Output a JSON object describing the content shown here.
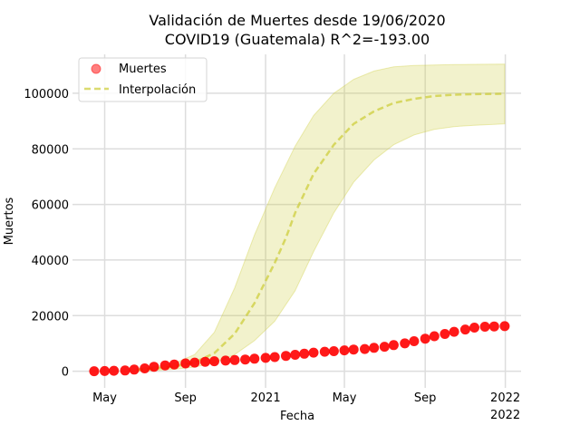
{
  "chart_data": {
    "type": "line",
    "title_lines": [
      "Validación de Muertes desde 19/06/2020",
      "COVID19 (Guatemala) R^2=-193.00"
    ],
    "xlabel": "Fecha",
    "ylabel": "Muertos",
    "x_range": [
      "2020-03-13",
      "2022-01-25"
    ],
    "ylim": [
      -6000,
      114000
    ],
    "y_ticks": [
      0,
      20000,
      40000,
      60000,
      80000,
      100000
    ],
    "x_ticks": [
      {
        "date": "2020-05-01",
        "label": "May",
        "sublabel": ""
      },
      {
        "date": "2020-09-01",
        "label": "Sep",
        "sublabel": ""
      },
      {
        "date": "2021-01-01",
        "label": "2021",
        "sublabel": ""
      },
      {
        "date": "2021-05-01",
        "label": "May",
        "sublabel": ""
      },
      {
        "date": "2021-09-01",
        "label": "Sep",
        "sublabel": ""
      },
      {
        "date": "2022-01-01",
        "label": "2022",
        "sublabel": "2022"
      }
    ],
    "grid": true,
    "legend_position": "top-left",
    "series": [
      {
        "name": "Muertes",
        "kind": "scatter",
        "color": "#ff0000",
        "points": [
          [
            "2020-04-15",
            10
          ],
          [
            "2020-05-01",
            50
          ],
          [
            "2020-05-15",
            150
          ],
          [
            "2020-06-01",
            250
          ],
          [
            "2020-06-15",
            600
          ],
          [
            "2020-07-01",
            1000
          ],
          [
            "2020-07-15",
            1600
          ],
          [
            "2020-08-01",
            2100
          ],
          [
            "2020-08-15",
            2400
          ],
          [
            "2020-09-01",
            2800
          ],
          [
            "2020-09-15",
            3100
          ],
          [
            "2020-10-01",
            3400
          ],
          [
            "2020-10-15",
            3600
          ],
          [
            "2020-11-01",
            3800
          ],
          [
            "2020-11-15",
            4000
          ],
          [
            "2020-12-01",
            4200
          ],
          [
            "2020-12-15",
            4500
          ],
          [
            "2021-01-01",
            4800
          ],
          [
            "2021-01-15",
            5100
          ],
          [
            "2021-02-01",
            5500
          ],
          [
            "2021-02-15",
            5900
          ],
          [
            "2021-03-01",
            6300
          ],
          [
            "2021-03-15",
            6700
          ],
          [
            "2021-04-01",
            7000
          ],
          [
            "2021-04-15",
            7200
          ],
          [
            "2021-05-01",
            7500
          ],
          [
            "2021-05-15",
            7800
          ],
          [
            "2021-06-01",
            8000
          ],
          [
            "2021-06-15",
            8400
          ],
          [
            "2021-07-01",
            8800
          ],
          [
            "2021-07-15",
            9400
          ],
          [
            "2021-08-01",
            10000
          ],
          [
            "2021-08-15",
            10800
          ],
          [
            "2021-09-01",
            11700
          ],
          [
            "2021-09-15",
            12600
          ],
          [
            "2021-10-01",
            13400
          ],
          [
            "2021-10-15",
            14200
          ],
          [
            "2021-11-01",
            15000
          ],
          [
            "2021-11-15",
            15700
          ],
          [
            "2021-12-01",
            16000
          ],
          [
            "2021-12-15",
            16100
          ],
          [
            "2021-12-31",
            16200
          ]
        ]
      },
      {
        "name": "Interpolación",
        "kind": "line",
        "color": "#cccc33",
        "points": [
          [
            "2020-06-19",
            500
          ],
          [
            "2020-07-15",
            900
          ],
          [
            "2020-08-15",
            1700
          ],
          [
            "2020-09-15",
            3200
          ],
          [
            "2020-10-15",
            6500
          ],
          [
            "2020-11-15",
            13500
          ],
          [
            "2020-12-15",
            24500
          ],
          [
            "2021-01-15",
            39000
          ],
          [
            "2021-02-01",
            48000
          ],
          [
            "2021-02-15",
            57000
          ],
          [
            "2021-03-15",
            71000
          ],
          [
            "2021-04-15",
            81500
          ],
          [
            "2021-05-15",
            89000
          ],
          [
            "2021-06-15",
            93500
          ],
          [
            "2021-07-15",
            96500
          ],
          [
            "2021-08-15",
            98000
          ],
          [
            "2021-09-15",
            99000
          ],
          [
            "2021-10-15",
            99500
          ],
          [
            "2021-11-15",
            99700
          ],
          [
            "2021-12-31",
            99800
          ]
        ],
        "band_upper": [
          [
            "2020-06-19",
            900
          ],
          [
            "2020-07-15",
            1500
          ],
          [
            "2020-08-15",
            2800
          ],
          [
            "2020-09-15",
            6000
          ],
          [
            "2020-10-15",
            14000
          ],
          [
            "2020-11-15",
            30000
          ],
          [
            "2020-12-15",
            49000
          ],
          [
            "2021-01-15",
            66000
          ],
          [
            "2021-02-15",
            81000
          ],
          [
            "2021-03-15",
            92000
          ],
          [
            "2021-04-15",
            100000
          ],
          [
            "2021-05-15",
            105000
          ],
          [
            "2021-06-15",
            108000
          ],
          [
            "2021-07-15",
            109500
          ],
          [
            "2021-08-15",
            110000
          ],
          [
            "2021-09-15",
            110200
          ],
          [
            "2021-10-15",
            110300
          ],
          [
            "2021-11-15",
            110400
          ],
          [
            "2021-12-31",
            110500
          ]
        ],
        "band_lower": [
          [
            "2020-06-19",
            100
          ],
          [
            "2020-07-15",
            300
          ],
          [
            "2020-08-15",
            700
          ],
          [
            "2020-09-15",
            1500
          ],
          [
            "2020-10-15",
            3000
          ],
          [
            "2020-11-15",
            6000
          ],
          [
            "2020-12-15",
            11000
          ],
          [
            "2021-01-15",
            18000
          ],
          [
            "2021-02-15",
            29000
          ],
          [
            "2021-03-15",
            43000
          ],
          [
            "2021-04-15",
            57000
          ],
          [
            "2021-05-15",
            68000
          ],
          [
            "2021-06-15",
            76000
          ],
          [
            "2021-07-15",
            81500
          ],
          [
            "2021-08-15",
            85000
          ],
          [
            "2021-09-15",
            87000
          ],
          [
            "2021-10-15",
            88000
          ],
          [
            "2021-11-15",
            88500
          ],
          [
            "2021-12-31",
            89000
          ]
        ]
      }
    ]
  }
}
